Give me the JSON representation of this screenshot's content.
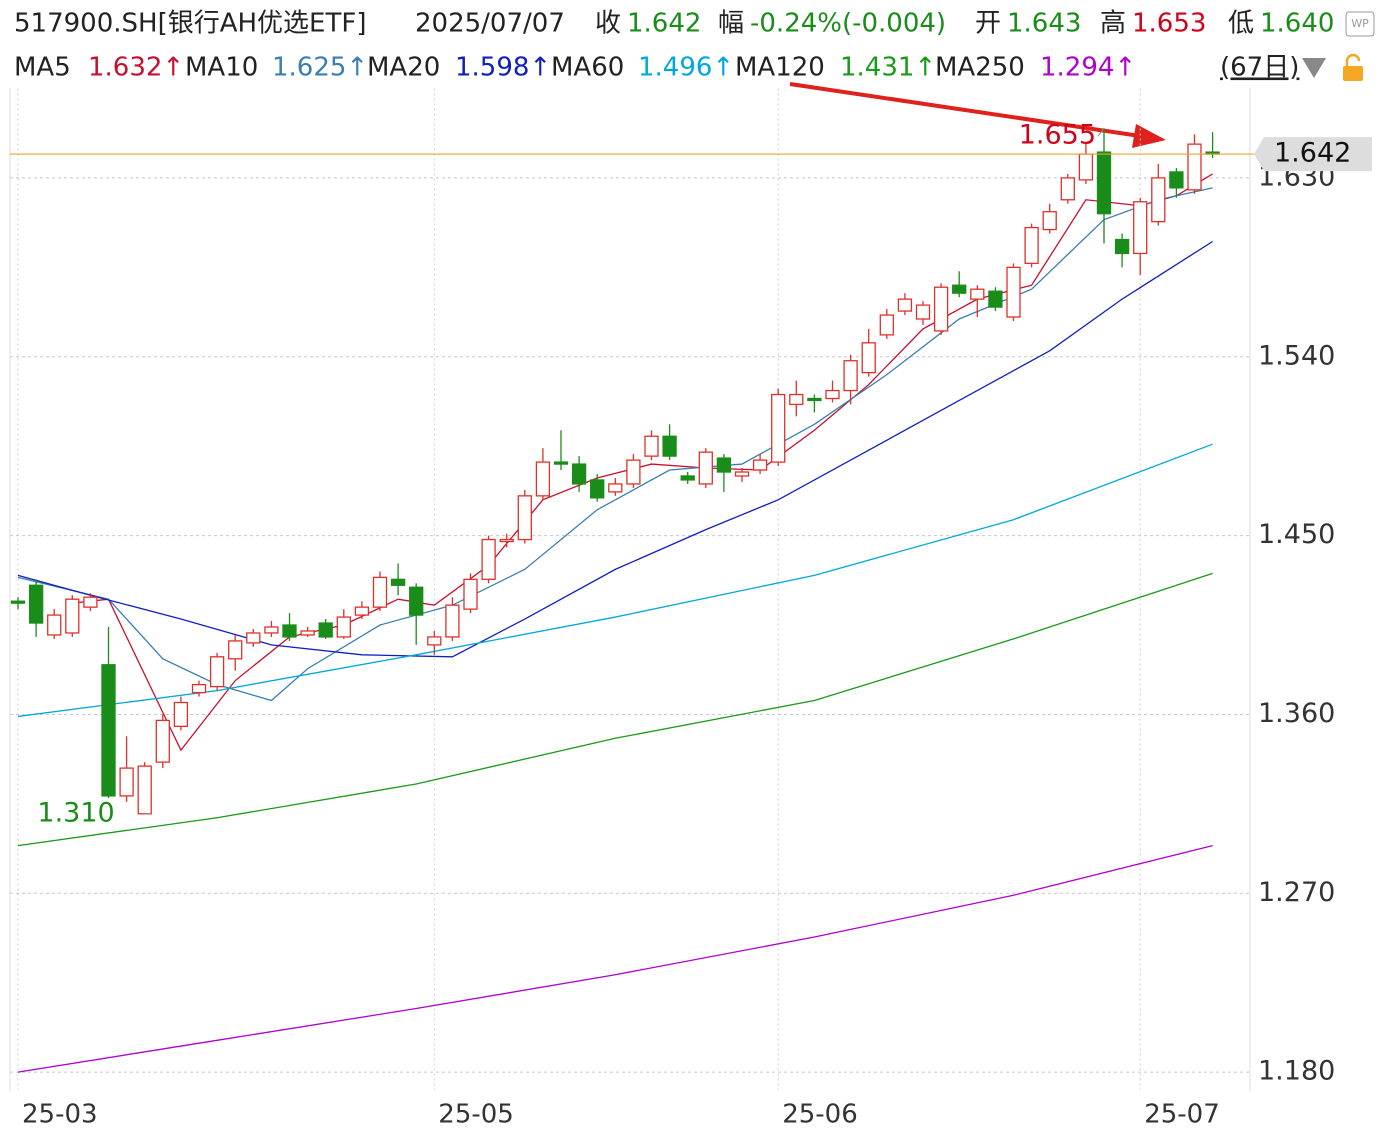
{
  "header": {
    "code": "517900.SH[银行AH优选ETF]",
    "date": "2025/07/07",
    "fields": [
      {
        "label": "收",
        "value": "1.642",
        "tone": "down"
      },
      {
        "label": "幅",
        "value": "-0.24%(-0.004)",
        "tone": "down"
      },
      {
        "label": "开",
        "value": "1.643",
        "tone": "down"
      },
      {
        "label": "高",
        "value": "1.653",
        "tone": "up"
      },
      {
        "label": "低",
        "value": "1.640",
        "tone": "down"
      }
    ],
    "period": "(67日)"
  },
  "chart_data": {
    "type": "candlestick",
    "categories": [
      "25-03",
      null,
      null,
      null,
      null,
      null,
      null,
      null,
      null,
      null,
      null,
      null,
      null,
      null,
      null,
      null,
      null,
      null,
      null,
      null,
      null,
      null,
      null,
      "25-05",
      null,
      null,
      null,
      null,
      null,
      null,
      null,
      null,
      null,
      null,
      null,
      null,
      null,
      null,
      null,
      null,
      null,
      null,
      "25-06",
      null,
      null,
      null,
      null,
      null,
      null,
      null,
      null,
      null,
      null,
      null,
      null,
      null,
      null,
      null,
      null,
      null,
      null,
      null,
      "25-07",
      null,
      null,
      null,
      null
    ],
    "open": [
      1.417,
      1.425,
      1.4,
      1.401,
      1.414,
      1.385,
      1.319,
      1.31,
      1.336,
      1.354,
      1.371,
      1.374,
      1.388,
      1.396,
      1.401,
      1.405,
      1.4,
      1.406,
      1.399,
      1.41,
      1.414,
      1.428,
      1.424,
      1.395,
      1.399,
      1.413,
      1.428,
      1.447,
      1.448,
      1.47,
      1.487,
      1.486,
      1.478,
      1.472,
      1.476,
      1.49,
      1.5,
      1.48,
      1.476,
      1.489,
      1.48,
      1.483,
      1.487,
      1.516,
      1.519,
      1.519,
      1.523,
      1.532,
      1.551,
      1.563,
      1.559,
      1.553,
      1.576,
      1.569,
      1.573,
      1.56,
      1.587,
      1.604,
      1.619,
      1.629,
      1.643,
      1.599,
      1.592,
      1.608,
      1.633,
      1.624,
      1.643
    ],
    "high": [
      1.419,
      1.428,
      1.413,
      1.42,
      1.421,
      1.404,
      1.349,
      1.336,
      1.36,
      1.369,
      1.377,
      1.391,
      1.4,
      1.403,
      1.407,
      1.411,
      1.404,
      1.408,
      1.413,
      1.417,
      1.432,
      1.436,
      1.426,
      1.402,
      1.419,
      1.431,
      1.45,
      1.451,
      1.473,
      1.494,
      1.503,
      1.49,
      1.481,
      1.479,
      1.491,
      1.503,
      1.506,
      1.482,
      1.494,
      1.491,
      1.484,
      1.491,
      1.524,
      1.528,
      1.521,
      1.528,
      1.541,
      1.554,
      1.564,
      1.572,
      1.568,
      1.577,
      1.583,
      1.576,
      1.575,
      1.587,
      1.607,
      1.617,
      1.632,
      1.647,
      1.655,
      1.602,
      1.62,
      1.637,
      1.635,
      1.652,
      1.653
    ],
    "low": [
      1.413,
      1.399,
      1.398,
      1.399,
      1.412,
      1.318,
      1.316,
      1.31,
      1.333,
      1.352,
      1.369,
      1.372,
      1.382,
      1.394,
      1.399,
      1.397,
      1.399,
      1.398,
      1.398,
      1.408,
      1.412,
      1.42,
      1.395,
      1.39,
      1.397,
      1.411,
      1.426,
      1.444,
      1.446,
      1.468,
      1.483,
      1.472,
      1.467,
      1.47,
      1.474,
      1.488,
      1.488,
      1.476,
      1.474,
      1.472,
      1.477,
      1.481,
      1.485,
      1.51,
      1.512,
      1.517,
      1.516,
      1.53,
      1.549,
      1.561,
      1.556,
      1.551,
      1.57,
      1.56,
      1.563,
      1.558,
      1.585,
      1.602,
      1.617,
      1.627,
      1.597,
      1.585,
      1.581,
      1.606,
      1.62,
      1.622,
      1.64
    ],
    "close": [
      1.416,
      1.406,
      1.41,
      1.418,
      1.419,
      1.319,
      1.333,
      1.334,
      1.357,
      1.366,
      1.375,
      1.389,
      1.397,
      1.401,
      1.404,
      1.399,
      1.402,
      1.399,
      1.409,
      1.414,
      1.429,
      1.425,
      1.41,
      1.399,
      1.415,
      1.428,
      1.448,
      1.448,
      1.47,
      1.487,
      1.486,
      1.476,
      1.469,
      1.476,
      1.488,
      1.5,
      1.49,
      1.478,
      1.492,
      1.482,
      1.482,
      1.488,
      1.521,
      1.521,
      1.518,
      1.523,
      1.538,
      1.547,
      1.561,
      1.569,
      1.566,
      1.575,
      1.572,
      1.574,
      1.565,
      1.585,
      1.605,
      1.613,
      1.63,
      1.642,
      1.612,
      1.592,
      1.618,
      1.63,
      1.625,
      1.647,
      1.642
    ],
    "up_color": "#e0302a",
    "down_color": "#1a8c1a",
    "ma": [
      {
        "name": "MA5",
        "label": "1.632↑",
        "color": "#c8102e",
        "x": [
          3,
          5,
          9,
          12,
          15,
          18,
          21,
          23,
          26,
          29,
          32,
          35,
          38,
          41,
          44,
          47,
          50,
          53,
          56,
          59,
          62,
          64,
          66
        ],
        "values": [
          1.416,
          1.418,
          1.342,
          1.377,
          1.399,
          1.405,
          1.418,
          1.415,
          1.435,
          1.468,
          1.479,
          1.486,
          1.484,
          1.483,
          1.503,
          1.526,
          1.554,
          1.569,
          1.576,
          1.619,
          1.616,
          1.621,
          1.632
        ]
      },
      {
        "name": "MA10",
        "label": "1.625↑",
        "color": "#3a7fb0",
        "x": [
          0,
          5,
          8,
          11,
          14,
          16,
          20,
          24,
          28,
          32,
          36,
          40,
          44,
          48,
          52,
          56,
          60,
          63,
          66
        ],
        "values": [
          1.429,
          1.418,
          1.388,
          1.375,
          1.367,
          1.383,
          1.405,
          1.415,
          1.433,
          1.463,
          1.483,
          1.486,
          1.506,
          1.531,
          1.559,
          1.574,
          1.609,
          1.619,
          1.625
        ]
      },
      {
        "name": "MA20",
        "label": "1.598↑",
        "color": "#1020c0",
        "x": [
          0,
          4,
          9,
          14,
          19,
          24,
          28,
          33,
          38,
          42,
          47,
          52,
          57,
          61,
          66
        ],
        "values": [
          1.43,
          1.42,
          1.408,
          1.395,
          1.39,
          1.389,
          1.408,
          1.433,
          1.453,
          1.468,
          1.493,
          1.518,
          1.543,
          1.569,
          1.598
        ]
      },
      {
        "name": "MA60",
        "label": "1.496↑",
        "color": "#00a8d8",
        "x": [
          0,
          11,
          22,
          33,
          44,
          55,
          66
        ],
        "values": [
          1.359,
          1.372,
          1.39,
          1.409,
          1.43,
          1.458,
          1.496
        ]
      },
      {
        "name": "MA120",
        "label": "1.431↑",
        "color": "#1a9a1a",
        "x": [
          0,
          11,
          22,
          33,
          44,
          55,
          66
        ],
        "values": [
          1.294,
          1.308,
          1.325,
          1.348,
          1.367,
          1.398,
          1.431
        ]
      },
      {
        "name": "MA250",
        "label": "1.294↑",
        "color": "#b000d0",
        "x": [
          0,
          11,
          22,
          33,
          44,
          55,
          66
        ],
        "values": [
          1.18,
          1.196,
          1.212,
          1.229,
          1.248,
          1.269,
          1.294
        ]
      }
    ],
    "current": {
      "value": 1.642,
      "label": "1.642"
    },
    "annotations": [
      {
        "index": 60,
        "value": 1.655,
        "label": "1.655",
        "color": "#d0021b"
      },
      {
        "index": 7,
        "value": 1.31,
        "label": "1.310",
        "color": "#1a8c1a"
      }
    ],
    "ylim": [
      1.171,
      1.675
    ],
    "yticks": [
      {
        "value": 1.18,
        "label": "1.180"
      },
      {
        "value": 1.27,
        "label": "1.270"
      },
      {
        "value": 1.36,
        "label": "1.360"
      },
      {
        "value": 1.45,
        "label": "1.450"
      },
      {
        "value": 1.54,
        "label": "1.540"
      },
      {
        "value": 1.63,
        "label": "1.630"
      }
    ]
  }
}
